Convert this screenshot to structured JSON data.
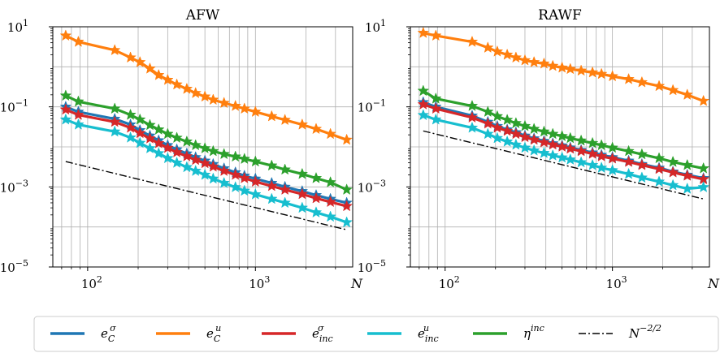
{
  "chart_data": [
    {
      "type": "line",
      "title": "AFW",
      "xlabel": "N",
      "ylabel": "",
      "xscale": "log",
      "yscale": "log",
      "xlim": [
        62,
        3800
      ],
      "ylim": [
        1e-05,
        10
      ],
      "x_ticks": [
        {
          "value": 100,
          "base": "10",
          "exp": "2"
        },
        {
          "value": 1000,
          "base": "10",
          "exp": "3"
        }
      ],
      "y_ticks": [
        {
          "value": 10,
          "base": "10",
          "exp": "1"
        },
        {
          "value": 0.1,
          "base": "10",
          "exp": "−1"
        },
        {
          "value": 0.001,
          "base": "10",
          "exp": "−3"
        },
        {
          "value": 1e-05,
          "base": "10",
          "exp": "−5"
        }
      ],
      "grid": true,
      "markers": "star",
      "x": [
        74,
        88,
        145,
        180,
        205,
        235,
        265,
        300,
        340,
        390,
        440,
        500,
        560,
        650,
        760,
        860,
        1000,
        1250,
        1500,
        1900,
        2300,
        2800,
        3500
      ],
      "series": [
        {
          "key": "eCs",
          "values": [
            6.0,
            4.2,
            2.6,
            1.7,
            1.3,
            0.9,
            0.62,
            0.47,
            0.36,
            0.28,
            0.22,
            0.18,
            0.15,
            0.125,
            0.105,
            0.09,
            0.075,
            0.058,
            0.047,
            0.036,
            0.028,
            0.021,
            0.015
          ]
        },
        {
          "key": "etaInc",
          "values": [
            0.19,
            0.135,
            0.09,
            0.063,
            0.048,
            0.035,
            0.027,
            0.021,
            0.0168,
            0.0135,
            0.011,
            0.0092,
            0.0078,
            0.0066,
            0.0057,
            0.005,
            0.0043,
            0.0034,
            0.0027,
            0.0021,
            0.00165,
            0.0013,
            0.00085
          ]
        },
        {
          "key": "eCsig",
          "values": [
            0.1,
            0.075,
            0.05,
            0.036,
            0.026,
            0.019,
            0.0145,
            0.011,
            0.0086,
            0.0068,
            0.0055,
            0.0045,
            0.0037,
            0.0029,
            0.0023,
            0.0019,
            0.0016,
            0.00125,
            0.001,
            0.00078,
            0.00062,
            0.0005,
            0.0004
          ]
        },
        {
          "key": "eIncSig",
          "values": [
            0.085,
            0.063,
            0.042,
            0.03,
            0.022,
            0.0162,
            0.0123,
            0.0094,
            0.0073,
            0.0058,
            0.0047,
            0.0039,
            0.0032,
            0.0025,
            0.002,
            0.00165,
            0.00135,
            0.00105,
            0.00085,
            0.00066,
            0.00052,
            0.00042,
            0.00033
          ]
        },
        {
          "key": "eIncU",
          "values": [
            0.048,
            0.036,
            0.024,
            0.017,
            0.0125,
            0.0092,
            0.0069,
            0.0052,
            0.004,
            0.0031,
            0.0025,
            0.002,
            0.0016,
            0.00125,
            0.00098,
            0.0008,
            0.00065,
            0.0005,
            0.0004,
            0.0003,
            0.00023,
            0.00018,
            0.00013
          ]
        }
      ],
      "reference": {
        "key": "ref",
        "x": [
          74,
          3500
        ],
        "values": [
          0.0043,
          8.5e-05
        ]
      }
    },
    {
      "type": "line",
      "title": "RAWF",
      "xlabel": "N",
      "ylabel": "",
      "xscale": "log",
      "yscale": "log",
      "xlim": [
        62,
        3800
      ],
      "ylim": [
        1e-05,
        10
      ],
      "x_ticks": [
        {
          "value": 100,
          "base": "10",
          "exp": "2"
        },
        {
          "value": 1000,
          "base": "10",
          "exp": "3"
        }
      ],
      "y_ticks": [
        {
          "value": 10,
          "base": "10",
          "exp": "1"
        },
        {
          "value": 0.1,
          "base": "10",
          "exp": "−1"
        },
        {
          "value": 0.001,
          "base": "10",
          "exp": "−3"
        },
        {
          "value": 1e-05,
          "base": "10",
          "exp": "−5"
        }
      ],
      "grid": true,
      "markers": "star",
      "x": [
        74,
        88,
        145,
        180,
        205,
        235,
        265,
        300,
        340,
        390,
        440,
        500,
        560,
        650,
        760,
        860,
        1000,
        1250,
        1500,
        1900,
        2300,
        2800,
        3500
      ],
      "series": [
        {
          "key": "eCs",
          "values": [
            7.0,
            6.0,
            4.2,
            3.0,
            2.4,
            2.0,
            1.7,
            1.45,
            1.3,
            1.2,
            1.05,
            0.95,
            0.88,
            0.8,
            0.72,
            0.66,
            0.58,
            0.49,
            0.41,
            0.33,
            0.26,
            0.2,
            0.14
          ]
        },
        {
          "key": "etaInc",
          "values": [
            0.25,
            0.16,
            0.105,
            0.075,
            0.058,
            0.047,
            0.039,
            0.033,
            0.028,
            0.024,
            0.021,
            0.0185,
            0.0165,
            0.0143,
            0.0124,
            0.011,
            0.0095,
            0.0078,
            0.0065,
            0.0052,
            0.0042,
            0.0035,
            0.0029
          ]
        },
        {
          "key": "eCsig",
          "values": [
            0.13,
            0.1,
            0.06,
            0.042,
            0.033,
            0.027,
            0.023,
            0.019,
            0.0162,
            0.014,
            0.0122,
            0.0108,
            0.0096,
            0.0083,
            0.0072,
            0.0063,
            0.0055,
            0.0045,
            0.0037,
            0.003,
            0.0024,
            0.002,
            0.00165
          ]
        },
        {
          "key": "eIncSig",
          "values": [
            0.115,
            0.09,
            0.054,
            0.038,
            0.03,
            0.025,
            0.021,
            0.0175,
            0.015,
            0.013,
            0.0114,
            0.0101,
            0.009,
            0.0078,
            0.0067,
            0.0058,
            0.0051,
            0.0042,
            0.0035,
            0.0028,
            0.0023,
            0.0019,
            0.00155
          ]
        },
        {
          "key": "eIncU",
          "values": [
            0.062,
            0.048,
            0.03,
            0.021,
            0.0165,
            0.0135,
            0.0113,
            0.0095,
            0.0081,
            0.007,
            0.0061,
            0.0054,
            0.0048,
            0.0041,
            0.0035,
            0.003,
            0.0026,
            0.0021,
            0.0017,
            0.00135,
            0.0011,
            0.0009,
            0.00098
          ]
        }
      ],
      "reference": {
        "key": "ref",
        "x": [
          74,
          3500
        ],
        "values": [
          0.025,
          0.0005
        ]
      }
    }
  ],
  "legend": {
    "placement": "bottom",
    "items": [
      {
        "key": "eCsig",
        "color": "#1f77b4",
        "style": "solid",
        "base": "e",
        "sup": "σ",
        "sub": "C"
      },
      {
        "key": "eCs",
        "color": "#ff7f0e",
        "style": "solid",
        "base": "e",
        "sup": "u",
        "sub": "C"
      },
      {
        "key": "eIncSig",
        "color": "#d62728",
        "style": "solid",
        "base": "e",
        "sup": "σ",
        "sub": "inc"
      },
      {
        "key": "eIncU",
        "color": "#17becf",
        "style": "solid",
        "base": "e",
        "sup": "u",
        "sub": "inc"
      },
      {
        "key": "etaInc",
        "color": "#2ca02c",
        "style": "solid",
        "base": "η",
        "sup": "inc",
        "sub": ""
      },
      {
        "key": "ref",
        "color": "#000000",
        "style": "dashdot",
        "base": "N",
        "sup": "−2/2",
        "sub": ""
      }
    ]
  }
}
